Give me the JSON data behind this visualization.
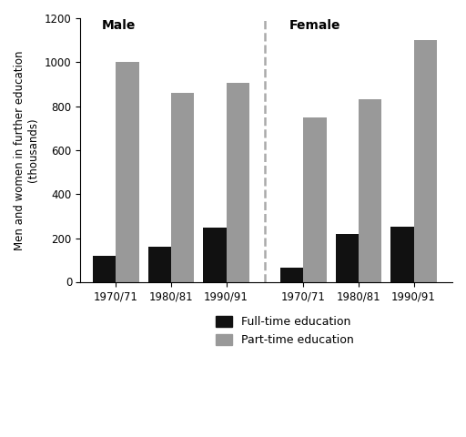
{
  "male_periods": [
    "1970/71",
    "1980/81",
    "1990/91"
  ],
  "female_periods": [
    "1970/71",
    "1980/81",
    "1990/91"
  ],
  "male_fulltime": [
    120,
    160,
    250
  ],
  "male_parttime": [
    1000,
    860,
    905
  ],
  "female_fulltime": [
    65,
    220,
    255
  ],
  "female_parttime": [
    750,
    830,
    1100
  ],
  "ylabel": "Men and women in further education\n(thousands)",
  "ylim": [
    0,
    1200
  ],
  "yticks": [
    0,
    200,
    400,
    600,
    800,
    1000,
    1200
  ],
  "fulltime_color": "#111111",
  "parttime_color": "#999999",
  "male_label": "Male",
  "female_label": "Female",
  "legend_fulltime": "Full-time education",
  "legend_parttime": "Part-time education",
  "bg_color": "#ffffff",
  "bar_width": 0.42
}
